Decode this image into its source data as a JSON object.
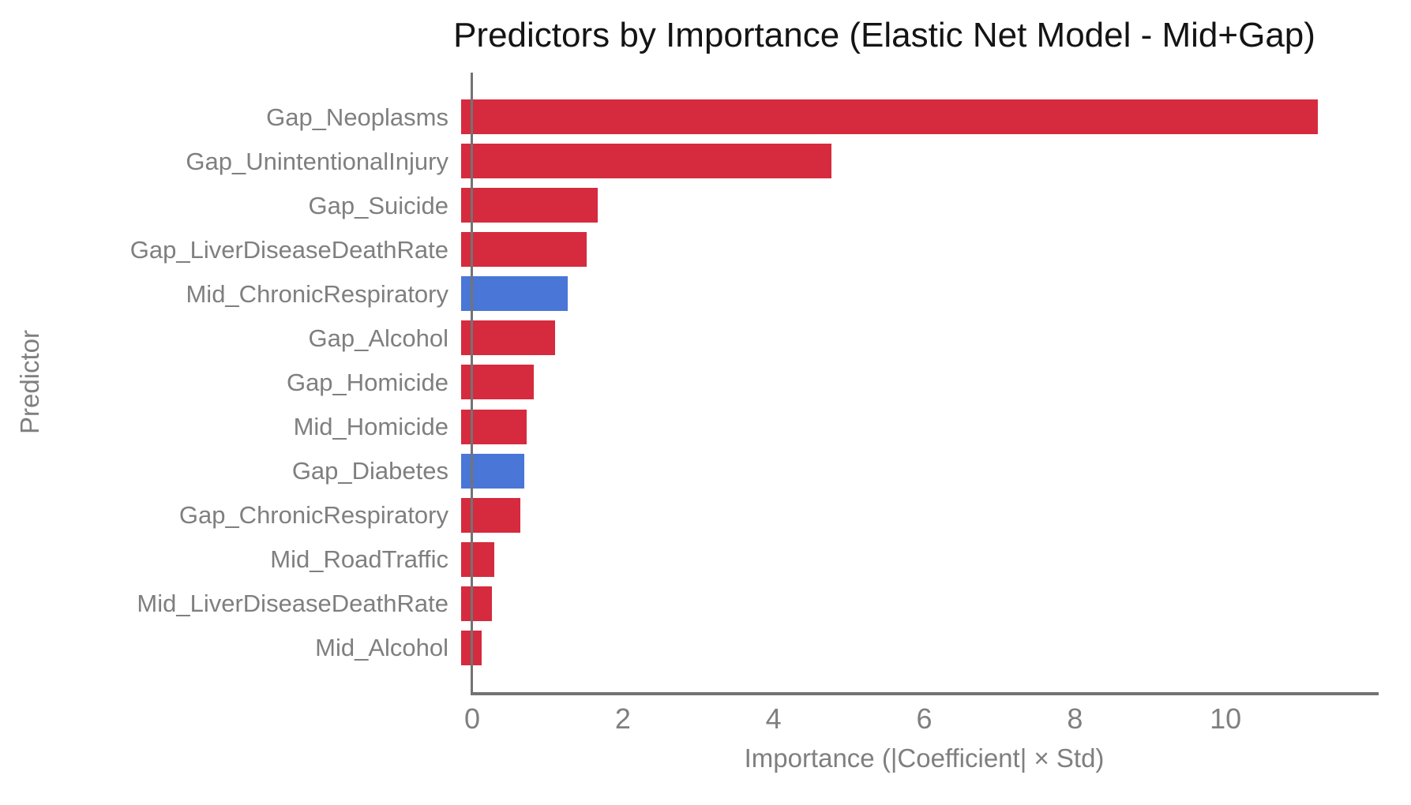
{
  "chart_data": {
    "type": "bar",
    "orientation": "horizontal",
    "title": "Predictors by Importance (Elastic Net Model - Mid+Gap)",
    "xlabel": "Importance (|Coefficient| × Std)",
    "ylabel": "Predictor",
    "categories": [
      "Gap_Neoplasms",
      "Gap_UnintentionalInjury",
      "Gap_Suicide",
      "Gap_LiverDiseaseDeathRate",
      "Mid_ChronicRespiratory",
      "Gap_Alcohol",
      "Gap_Homicide",
      "Mid_Homicide",
      "Gap_Diabetes",
      "Gap_ChronicRespiratory",
      "Mid_RoadTraffic",
      "Mid_LiverDiseaseDeathRate",
      "Mid_Alcohol"
    ],
    "values": [
      11.37,
      4.92,
      1.81,
      1.67,
      1.41,
      1.25,
      0.96,
      0.87,
      0.84,
      0.79,
      0.44,
      0.41,
      0.27
    ],
    "bar_colors": [
      "#d62a3e",
      "#d62a3e",
      "#d62a3e",
      "#d62a3e",
      "#4a76d8",
      "#d62a3e",
      "#d62a3e",
      "#d62a3e",
      "#4a76d8",
      "#d62a3e",
      "#d62a3e",
      "#d62a3e",
      "#d62a3e"
    ],
    "palette": {
      "red": "#d62a3e",
      "blue": "#4a76d8"
    },
    "xlim": [
      0,
      12
    ],
    "xticks": [
      "0",
      "2",
      "4",
      "6",
      "8",
      "10"
    ],
    "xtick_values": [
      0,
      2,
      4,
      6,
      8,
      10
    ],
    "grid": false,
    "legend": "none",
    "axis_color": "#737373",
    "label_color": "#7f7f7f",
    "title_color": "#141414"
  }
}
